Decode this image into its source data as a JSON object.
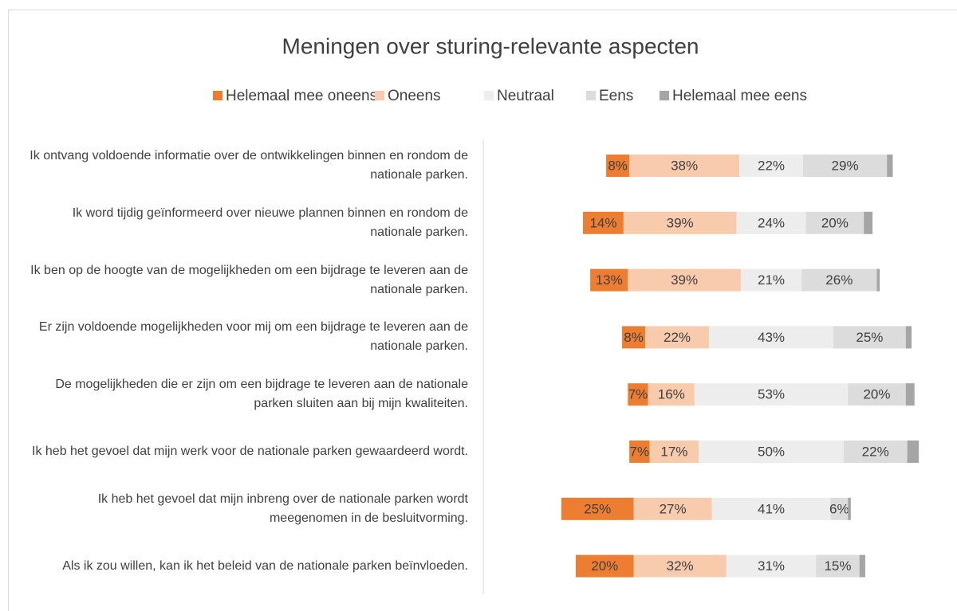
{
  "chart_data": {
    "type": "diverging-bar",
    "title": "Meningen over sturing-relevante aspecten",
    "categories": [
      "Ik ontvang voldoende informatie over de ontwikkelingen binnen en rondom de nationale parken.",
      "Ik word tijdig geïnformeerd over nieuwe plannen binnen en rondom de nationale parken.",
      "Ik ben op de hoogte van de mogelijkheden om een bijdrage te leveren aan de nationale parken.",
      "Er zijn voldoende mogelijkheden voor mij om een bijdrage te leveren aan de nationale parken.",
      "De mogelijkheden die er zijn om een bijdrage te leveren aan de nationale parken sluiten aan bij mijn kwaliteiten.",
      "Ik heb het gevoel dat mijn werk voor de nationale parken gewaardeerd wordt.",
      "Ik heb het gevoel dat mijn inbreng over de nationale parken wordt meegenomen in de besluitvorming.",
      "Als ik zou willen, kan ik het beleid van de nationale parken beïnvloeden."
    ],
    "series": [
      {
        "name": "Helemaal mee oneens",
        "color": "#ed7d31",
        "values": [
          8,
          14,
          13,
          8,
          7,
          7,
          25,
          20
        ],
        "value_labels": [
          "8%",
          "14%",
          "13%",
          "8%",
          "7%",
          "7%",
          "25%",
          "20%"
        ]
      },
      {
        "name": "Oneens",
        "color": "#f8cbad",
        "values": [
          38,
          39,
          39,
          22,
          16,
          17,
          27,
          32
        ],
        "value_labels": [
          "38%",
          "39%",
          "39%",
          "22%",
          "16%",
          "17%",
          "27%",
          "32%"
        ]
      },
      {
        "name": "Neutraal",
        "color": "#ededed",
        "values": [
          22,
          24,
          21,
          43,
          53,
          50,
          41,
          31
        ],
        "value_labels": [
          "22%",
          "24%",
          "21%",
          "43%",
          "53%",
          "50%",
          "41%",
          "31%"
        ]
      },
      {
        "name": "Eens",
        "color": "#dcdcdc",
        "values": [
          29,
          20,
          26,
          25,
          20,
          22,
          6,
          15
        ],
        "value_labels": [
          "29%",
          "20%",
          "26%",
          "25%",
          "20%",
          "22%",
          "6%",
          "15%"
        ]
      },
      {
        "name": "Helemaal mee eens",
        "color": "#a5a5a5",
        "values": [
          2,
          3,
          1,
          2,
          3,
          4,
          1,
          2
        ]
      }
    ]
  }
}
